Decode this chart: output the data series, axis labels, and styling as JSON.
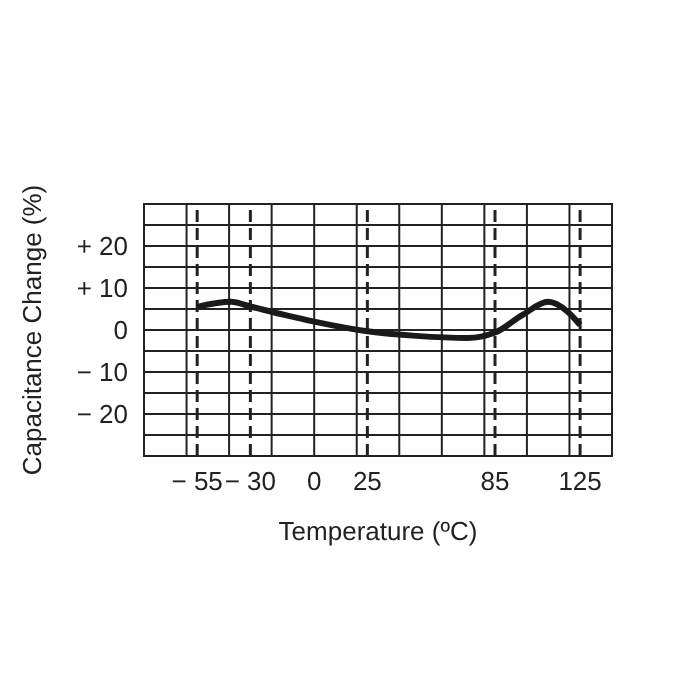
{
  "chart_data": {
    "type": "line",
    "xlabel": "Temperature (ºC)",
    "ylabel": "Capacitance Change (%)",
    "x": [
      -55,
      -39,
      -30,
      -14,
      0,
      25,
      48,
      72,
      85,
      98,
      110,
      119,
      125
    ],
    "series": [
      {
        "color": "#1a1a1a",
        "values": [
          5.5,
          6.7,
          5.6,
          3.6,
          2,
          -0.3,
          -1.4,
          -1.9,
          -0.6,
          3.6,
          6.7,
          4.4,
          1.2
        ]
      }
    ],
    "xlim": [
      -80,
      140
    ],
    "xticks": [
      {
        "value": -55,
        "label": "− 55"
      },
      {
        "value": -30,
        "label": "− 30"
      },
      {
        "value": 0,
        "label": "0"
      },
      {
        "value": 25,
        "label": "25"
      },
      {
        "value": 85,
        "label": "85"
      },
      {
        "value": 125,
        "label": "125"
      }
    ],
    "ylim": [
      -30,
      30
    ],
    "yticks": [
      {
        "value": -30,
        "label": null
      },
      {
        "value": -25,
        "label": null
      },
      {
        "value": -20,
        "label": "− 20"
      },
      {
        "value": -15,
        "label": null
      },
      {
        "value": -10,
        "label": "− 10"
      },
      {
        "value": -5,
        "label": null
      },
      {
        "value": 0,
        "label": "0"
      },
      {
        "value": 5,
        "label": null
      },
      {
        "value": 10,
        "label": "+ 10"
      },
      {
        "value": 15,
        "label": null
      },
      {
        "value": 20,
        "label": "+ 20"
      },
      {
        "value": 25,
        "label": null
      },
      {
        "value": 30,
        "label": null
      }
    ],
    "grid": "y",
    "marker": "none",
    "line_style": "solid",
    "legend": false,
    "ref_lines": [
      {
        "axis": "x",
        "value": -60,
        "line_style": "solid"
      },
      {
        "axis": "x",
        "value": -40,
        "line_style": "solid"
      },
      {
        "axis": "x",
        "value": -20,
        "line_style": "solid"
      },
      {
        "axis": "x",
        "value": 0,
        "line_style": "solid"
      },
      {
        "axis": "x",
        "value": 20,
        "line_style": "solid"
      },
      {
        "axis": "x",
        "value": 40,
        "line_style": "solid"
      },
      {
        "axis": "x",
        "value": 60,
        "line_style": "solid"
      },
      {
        "axis": "x",
        "value": 80,
        "line_style": "solid"
      },
      {
        "axis": "x",
        "value": 100,
        "line_style": "solid"
      },
      {
        "axis": "x",
        "value": 120,
        "line_style": "solid"
      },
      {
        "axis": "x",
        "value": -55,
        "line_style": "dashed"
      },
      {
        "axis": "x",
        "value": -30,
        "line_style": "dashed"
      },
      {
        "axis": "x",
        "value": 25,
        "line_style": "dashed"
      },
      {
        "axis": "x",
        "value": 85,
        "line_style": "dashed"
      },
      {
        "axis": "x",
        "value": 125,
        "line_style": "dashed"
      }
    ]
  }
}
